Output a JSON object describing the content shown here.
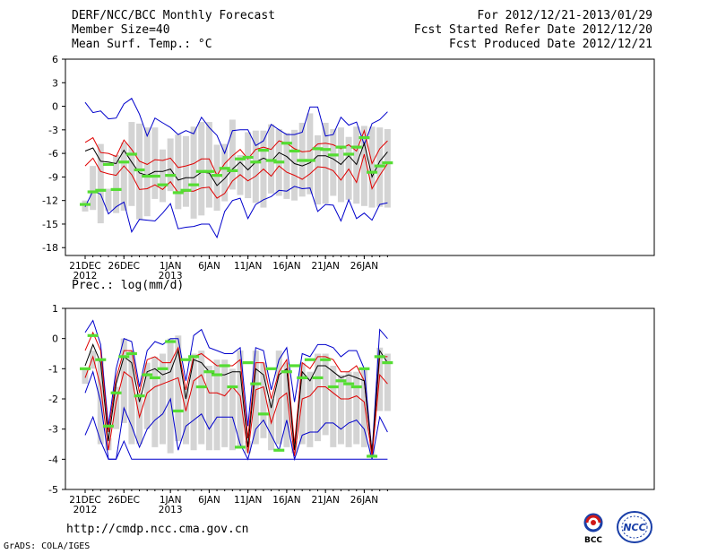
{
  "header": {
    "title": "DERF/NCC/BCC Monthly Forecast",
    "member_size": "Member Size=40",
    "variable": "Mean Surf. Temp.: °C",
    "forecast_range": "For 2012/12/21-2013/01/29",
    "fcst_started": "Fcst Started Refer Date 2012/12/20",
    "fcst_produced": "Fcst Produced Date 2012/12/21"
  },
  "footer": {
    "url": "http://cmdp.ncc.cma.gov.cn",
    "credit": "GrADS: COLA/IGES",
    "logo1_text": "BCC",
    "logo2_text": "NCC"
  },
  "colors": {
    "mean": "#000000",
    "spread": "#e00000",
    "extreme": "#0000cc",
    "obs": "#55dd33",
    "box": "#d4d4d4"
  },
  "chart_data": [
    {
      "type": "line",
      "title": "Mean Surf. Temp.: °C",
      "xlabel": "",
      "ylabel": "",
      "ylim": [
        -19,
        6
      ],
      "yticks": [
        -18,
        -15,
        -12,
        -9,
        -6,
        -3,
        0,
        3,
        6
      ],
      "xtick_days": [
        0,
        5,
        11,
        16,
        21,
        26,
        31,
        36
      ],
      "xtick_labels": [
        "21DEC",
        "26DEC",
        "1JAN",
        "6JAN",
        "11JAN",
        "16JAN",
        "21JAN",
        "26JAN"
      ],
      "xtick_sublabels": [
        "2012",
        "",
        "2013",
        "",
        "",
        "",
        "",
        ""
      ],
      "x": [
        0,
        1,
        2,
        3,
        4,
        5,
        6,
        7,
        8,
        9,
        10,
        11,
        12,
        13,
        14,
        15,
        16,
        17,
        18,
        19,
        20,
        21,
        22,
        23,
        24,
        25,
        26,
        27,
        28,
        29,
        30,
        31,
        32,
        33,
        34,
        35,
        36,
        37,
        38,
        39
      ],
      "series": [
        {
          "name": "max",
          "values": [
            0.5,
            -0.8,
            -0.6,
            -1.6,
            -1.5,
            0.3,
            1.0,
            -1.0,
            -3.8,
            -1.5,
            -2.1,
            -2.7,
            -3.6,
            -3.1,
            -3.5,
            -1.4,
            -2.7,
            -3.7,
            -6.0,
            -3.1,
            -3.0,
            -3.0,
            -5.0,
            -4.4,
            -2.3,
            -3.0,
            -3.6,
            -3.6,
            -3.3,
            -0.1,
            -0.1,
            -3.8,
            -3.6,
            -1.4,
            -2.4,
            -2.0,
            -4.9,
            -2.2,
            -1.7,
            -0.7
          ]
        },
        {
          "name": "mean+sd",
          "values": [
            -4.6,
            -4.0,
            -5.9,
            -6.0,
            -6.4,
            -4.3,
            -5.5,
            -7.0,
            -7.4,
            -6.8,
            -6.9,
            -6.6,
            -7.8,
            -7.6,
            -7.3,
            -6.7,
            -6.7,
            -8.8,
            -7.3,
            -6.3,
            -5.5,
            -6.7,
            -5.5,
            -5.2,
            -5.5,
            -4.4,
            -4.7,
            -5.4,
            -5.8,
            -5.7,
            -4.8,
            -4.7,
            -4.9,
            -5.4,
            -4.9,
            -5.7,
            -3.1,
            -7.3,
            -5.4,
            -4.4
          ]
        },
        {
          "name": "mean",
          "values": [
            -5.7,
            -5.3,
            -7.0,
            -7.1,
            -7.3,
            -5.6,
            -7.1,
            -8.5,
            -8.8,
            -8.3,
            -8.3,
            -8.0,
            -9.4,
            -9.1,
            -9.1,
            -8.4,
            -8.5,
            -10.1,
            -9.2,
            -8.0,
            -7.1,
            -8.1,
            -7.1,
            -6.6,
            -7.0,
            -5.9,
            -6.4,
            -7.3,
            -7.6,
            -7.2,
            -6.3,
            -6.3,
            -6.7,
            -7.4,
            -6.3,
            -7.4,
            -4.7,
            -9.0,
            -7.0,
            -5.8
          ]
        },
        {
          "name": "mean-sd",
          "values": [
            -7.6,
            -6.6,
            -8.3,
            -8.6,
            -8.8,
            -7.6,
            -8.7,
            -10.6,
            -10.5,
            -10.0,
            -10.6,
            -9.6,
            -11.0,
            -10.8,
            -10.8,
            -10.4,
            -10.3,
            -11.7,
            -11.1,
            -9.5,
            -8.7,
            -9.5,
            -8.9,
            -8.0,
            -8.9,
            -7.6,
            -8.4,
            -8.8,
            -9.3,
            -8.6,
            -7.7,
            -7.8,
            -8.2,
            -9.4,
            -8.0,
            -9.7,
            -6.1,
            -10.5,
            -8.8,
            -7.3
          ]
        },
        {
          "name": "min",
          "values": [
            -12.8,
            -10.8,
            -11.2,
            -13.7,
            -12.8,
            -12.2,
            -16.0,
            -14.4,
            -14.5,
            -14.6,
            -13.6,
            -12.4,
            -15.6,
            -15.4,
            -15.3,
            -15.0,
            -15.0,
            -16.7,
            -13.4,
            -12.0,
            -11.7,
            -14.3,
            -12.5,
            -11.9,
            -11.5,
            -10.7,
            -10.8,
            -10.2,
            -10.5,
            -10.4,
            -13.4,
            -12.5,
            -12.6,
            -14.6,
            -11.9,
            -14.3,
            -13.6,
            -14.5,
            -12.5,
            -12.3
          ]
        },
        {
          "name": "box_high",
          "values": [
            -12.0,
            -7.6,
            -4.8,
            -10.5,
            -6.2,
            -4.6,
            -2.0,
            -2.2,
            -2.7,
            -2.7,
            -5.5,
            -4.1,
            -3.6,
            -3.8,
            -2.6,
            -2.0,
            -2.0,
            -4.9,
            -4.8,
            -1.7,
            -6.2,
            -3.3,
            -3.1,
            -3.1,
            -2.3,
            -2.9,
            -3.4,
            -3.0,
            -2.1,
            -0.9,
            -3.7,
            -2.1,
            -2.9,
            -2.7,
            -3.9,
            -2.6,
            -2.5,
            -2.6,
            -2.7,
            -2.9
          ]
        },
        {
          "name": "box_low",
          "values": [
            -13.4,
            -13.2,
            -14.9,
            -13.3,
            -13.6,
            -13.3,
            -12.7,
            -14.4,
            -14.0,
            -11.8,
            -12.2,
            -10.8,
            -13.1,
            -12.8,
            -14.3,
            -13.9,
            -12.9,
            -13.3,
            -12.1,
            -10.6,
            -11.3,
            -11.7,
            -12.3,
            -12.9,
            -11.1,
            -11.4,
            -11.8,
            -12.0,
            -11.5,
            -11.2,
            -12.5,
            -12.4,
            -11.4,
            -12.2,
            -11.9,
            -12.4,
            -12.7,
            -12.9,
            -12.8,
            -12.9
          ]
        },
        {
          "name": "observed",
          "values": [
            -12.5,
            -10.9,
            -10.7,
            -7.4,
            -10.6,
            -7.1,
            -6.1,
            -8.1,
            -8.9,
            -8.9,
            -10.0,
            -8.8,
            -11.0,
            -10.7,
            -10.0,
            -8.3,
            -8.3,
            -8.8,
            -7.9,
            -8.2,
            -6.7,
            -6.5,
            -7.1,
            -5.6,
            -6.9,
            -7.1,
            -4.7,
            -5.7,
            -6.9,
            -6.9,
            -5.4,
            -5.5,
            -6.2,
            -5.2,
            -6.1,
            -5.2,
            -4.0,
            -8.4,
            -7.6,
            -7.2
          ]
        }
      ]
    },
    {
      "type": "line",
      "title": "Prec.: log(mm/d)",
      "xlabel": "",
      "ylabel": "",
      "ylim": [
        -5,
        1
      ],
      "yticks": [
        -5,
        -4,
        -3,
        -2,
        -1,
        0,
        1
      ],
      "xtick_days": [
        0,
        5,
        11,
        16,
        21,
        26,
        31,
        36
      ],
      "xtick_labels": [
        "21DEC",
        "26DEC",
        "1JAN",
        "6JAN",
        "11JAN",
        "16JAN",
        "21JAN",
        "26JAN"
      ],
      "xtick_sublabels": [
        "2012",
        "",
        "2013",
        "",
        "",
        "",
        "",
        ""
      ],
      "x": [
        0,
        1,
        2,
        3,
        4,
        5,
        6,
        7,
        8,
        9,
        10,
        11,
        12,
        13,
        14,
        15,
        16,
        17,
        18,
        19,
        20,
        21,
        22,
        23,
        24,
        25,
        26,
        27,
        28,
        29,
        30,
        31,
        32,
        33,
        34,
        35,
        36,
        37,
        38,
        39
      ],
      "series": [
        {
          "name": "max",
          "values": [
            0.2,
            0.6,
            -0.2,
            -2.9,
            -1.0,
            0.0,
            -0.1,
            -1.6,
            -0.4,
            -0.1,
            -0.2,
            0.0,
            0.0,
            -1.4,
            0.1,
            0.3,
            -0.3,
            -0.4,
            -0.5,
            -0.5,
            -0.3,
            -2.9,
            -0.3,
            -0.4,
            -1.7,
            -0.7,
            -0.3,
            -2.1,
            -0.5,
            -0.6,
            -0.2,
            -0.2,
            -0.3,
            -0.6,
            -0.4,
            -0.4,
            -1.0,
            -3.8,
            0.3,
            0.0
          ]
        },
        {
          "name": "mean+sd",
          "values": [
            -0.4,
            0.2,
            -0.4,
            -3.1,
            -1.3,
            -0.4,
            -0.4,
            -1.8,
            -0.7,
            -0.6,
            -0.8,
            -0.8,
            -0.3,
            -1.7,
            -0.6,
            -0.5,
            -0.7,
            -0.9,
            -0.9,
            -0.9,
            -0.7,
            -3.3,
            -0.8,
            -0.8,
            -2.0,
            -1.1,
            -0.7,
            -3.5,
            -0.8,
            -1.0,
            -0.6,
            -0.6,
            -0.7,
            -1.1,
            -1.1,
            -0.9,
            -1.4,
            -3.8,
            -0.6,
            -0.6
          ]
        },
        {
          "name": "mean",
          "values": [
            -0.9,
            -0.2,
            -0.8,
            -3.4,
            -1.5,
            -0.6,
            -0.8,
            -2.1,
            -1.1,
            -1.0,
            -1.2,
            -1.1,
            -0.4,
            -2.0,
            -0.7,
            -0.8,
            -1.1,
            -1.2,
            -1.2,
            -1.1,
            -1.1,
            -3.6,
            -1.0,
            -1.2,
            -2.3,
            -1.2,
            -1.0,
            -3.7,
            -1.1,
            -1.4,
            -0.9,
            -0.9,
            -1.1,
            -1.3,
            -1.2,
            -1.3,
            -1.4,
            -3.8,
            -0.4,
            -0.8
          ]
        },
        {
          "name": "mean-sd",
          "values": [
            -1.3,
            -0.6,
            -1.6,
            -3.7,
            -2.1,
            -1.1,
            -1.3,
            -2.6,
            -1.8,
            -1.6,
            -1.5,
            -1.4,
            -1.3,
            -2.4,
            -1.4,
            -1.2,
            -1.8,
            -1.8,
            -1.9,
            -1.6,
            -1.9,
            -3.8,
            -1.7,
            -1.6,
            -2.8,
            -2.0,
            -1.8,
            -3.9,
            -2.0,
            -1.9,
            -1.6,
            -1.6,
            -1.8,
            -2.0,
            -2.0,
            -1.9,
            -2.1,
            -3.9,
            -1.2,
            -1.5
          ]
        },
        {
          "name": "min",
          "values": [
            -1.8,
            -1.1,
            -2.1,
            -4.0,
            -4.0,
            -2.3,
            -2.9,
            -3.6,
            -3.0,
            -2.7,
            -2.5,
            -2.0,
            -3.7,
            -2.9,
            -2.7,
            -2.5,
            -3.0,
            -2.6,
            -2.6,
            -2.6,
            -3.5,
            -4.0,
            -3.0,
            -2.7,
            -3.2,
            -3.7,
            -2.7,
            -4.0,
            -3.2,
            -3.1,
            -3.1,
            -2.8,
            -2.8,
            -3.0,
            -2.8,
            -2.7,
            -3.0,
            -4.0,
            -2.6,
            -3.1
          ]
        },
        {
          "name": "floor",
          "values": [
            -3.2,
            -2.6,
            -3.4,
            -4.0,
            -4.0,
            -3.4,
            -4.0,
            -4.0,
            -4.0,
            -4.0,
            -4.0,
            -4.0,
            -4.0,
            -4.0,
            -4.0,
            -4.0,
            -4.0,
            -4.0,
            -4.0,
            -4.0,
            -4.0,
            -4.0,
            -4.0,
            -4.0,
            -4.0,
            -4.0,
            -4.0,
            -4.0,
            -4.0,
            -4.0,
            -4.0,
            -4.0,
            -4.0,
            -4.0,
            -4.0,
            -4.0,
            -4.0,
            -4.0,
            -4.0,
            -4.0
          ]
        },
        {
          "name": "box_high",
          "values": [
            -1.0,
            -0.4,
            -0.7,
            -3.3,
            -1.6,
            0.0,
            -0.4,
            -1.8,
            -0.8,
            -0.6,
            -0.5,
            0.0,
            0.1,
            -1.6,
            -0.5,
            -0.4,
            -0.9,
            -0.7,
            -0.7,
            -1.0,
            -0.4,
            -3.4,
            -0.4,
            -0.8,
            -2.0,
            -0.4,
            -0.8,
            -3.4,
            -0.8,
            -1.1,
            -0.5,
            -0.5,
            -0.9,
            -1.2,
            -1.1,
            -1.1,
            -1.0,
            -3.5,
            -0.3,
            -0.5
          ]
        },
        {
          "name": "box_low",
          "values": [
            -1.5,
            -1.0,
            -3.5,
            -3.7,
            -3.0,
            -2.8,
            -3.5,
            -3.5,
            -3.0,
            -3.6,
            -3.5,
            -3.8,
            -3.4,
            -3.5,
            -3.7,
            -3.5,
            -3.7,
            -3.7,
            -3.6,
            -3.7,
            -3.6,
            -3.8,
            -3.5,
            -3.3,
            -3.7,
            -3.5,
            -3.6,
            -3.8,
            -3.5,
            -3.6,
            -3.4,
            -3.2,
            -3.6,
            -3.5,
            -3.6,
            -3.5,
            -3.6,
            -3.9,
            -2.4,
            -2.4
          ]
        },
        {
          "name": "observed",
          "values": [
            -1.0,
            0.1,
            -0.7,
            -2.9,
            -1.8,
            -0.6,
            -0.5,
            -1.9,
            -1.2,
            -1.3,
            -1.0,
            -0.1,
            -2.4,
            -0.7,
            -0.6,
            -1.6,
            -1.1,
            -1.2,
            -0.9,
            -1.6,
            -3.6,
            -0.8,
            -1.5,
            -2.5,
            -1.0,
            -3.7,
            -1.1,
            -0.9,
            -1.3,
            -0.7,
            -1.3,
            -0.7,
            -1.6,
            -1.4,
            -1.5,
            -1.6,
            -1.0,
            -3.9,
            -0.6,
            -0.8
          ]
        }
      ]
    }
  ]
}
